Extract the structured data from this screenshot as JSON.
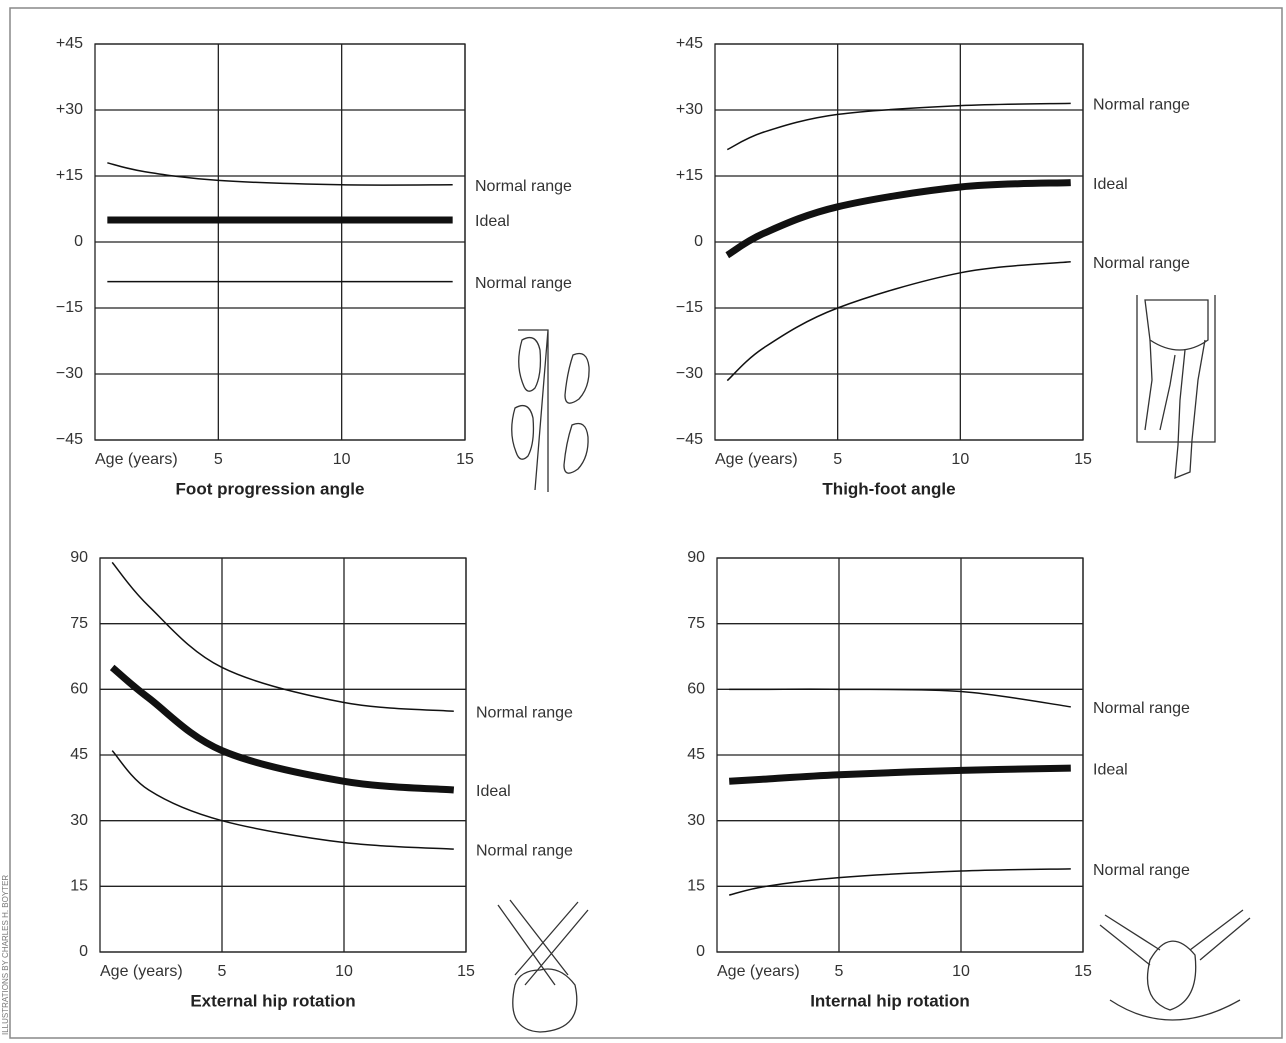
{
  "credit": "ILLUSTRATIONS BY CHARLES H. BOYTER",
  "chart_data": [
    {
      "type": "line",
      "title": "Foot progression angle",
      "xlabel": "Age (years)",
      "xlim": [
        0,
        15
      ],
      "xticks": [
        5,
        10,
        15
      ],
      "ylim": [
        -45,
        45
      ],
      "yticks": [
        {
          "value": 45,
          "label": "+45"
        },
        {
          "value": 30,
          "label": "+30"
        },
        {
          "value": 15,
          "label": "+15"
        },
        0,
        {
          "value": -15,
          "label": "−15"
        },
        {
          "value": -30,
          "label": "−30"
        },
        {
          "value": -45,
          "label": "−45"
        }
      ],
      "grid": true,
      "x": [
        0.5,
        2,
        5,
        10,
        14.5
      ],
      "series": [
        {
          "name": "Normal range",
          "color": "#111",
          "line_width": 1.5,
          "values": [
            18,
            16,
            14,
            13,
            13
          ]
        },
        {
          "name": "Ideal",
          "color": "#111",
          "line_width": 7,
          "values": [
            5,
            5,
            5,
            5,
            5
          ]
        },
        {
          "name": "Normal range",
          "color": "#111",
          "line_width": 1.5,
          "values": [
            -9,
            -9,
            -9,
            -9,
            -9
          ]
        }
      ]
    },
    {
      "type": "line",
      "title": "Thigh-foot angle",
      "xlabel": "Age (years)",
      "xlim": [
        0,
        15
      ],
      "xticks": [
        5,
        10,
        15
      ],
      "ylim": [
        -45,
        45
      ],
      "yticks": [
        {
          "value": 45,
          "label": "+45"
        },
        {
          "value": 30,
          "label": "+30"
        },
        {
          "value": 15,
          "label": "+15"
        },
        0,
        {
          "value": -15,
          "label": "−15"
        },
        {
          "value": -30,
          "label": "−30"
        },
        {
          "value": -45,
          "label": "−45"
        }
      ],
      "grid": true,
      "x": [
        0.5,
        2,
        5,
        10,
        14.5
      ],
      "series": [
        {
          "name": "Normal range",
          "color": "#111",
          "line_width": 1.5,
          "values": [
            21,
            25,
            29,
            31,
            31.5
          ]
        },
        {
          "name": "Ideal",
          "color": "#111",
          "line_width": 7,
          "values": [
            -3,
            2,
            8,
            12.5,
            13.5
          ]
        },
        {
          "name": "Normal range",
          "color": "#111",
          "line_width": 1.5,
          "values": [
            -31.5,
            -24,
            -15,
            -7,
            -4.5
          ]
        }
      ]
    },
    {
      "type": "line",
      "title": "External hip rotation",
      "xlabel": "Age (years)",
      "xlim": [
        0,
        15
      ],
      "xticks": [
        5,
        10,
        15
      ],
      "ylim": [
        0,
        90
      ],
      "yticks": [
        0,
        15,
        30,
        45,
        60,
        75,
        90
      ],
      "grid": true,
      "x": [
        0.5,
        2,
        5,
        10,
        14.5
      ],
      "series": [
        {
          "name": "Normal range",
          "color": "#111",
          "line_width": 1.5,
          "values": [
            89,
            79,
            65,
            57,
            55
          ]
        },
        {
          "name": "Ideal",
          "color": "#111",
          "line_width": 7,
          "values": [
            65,
            58,
            46,
            39,
            37
          ]
        },
        {
          "name": "Normal range",
          "color": "#111",
          "line_width": 1.5,
          "values": [
            46,
            37,
            30,
            25,
            23.5
          ]
        }
      ]
    },
    {
      "type": "line",
      "title": "Internal hip rotation",
      "xlabel": "Age (years)",
      "xlim": [
        0,
        15
      ],
      "xticks": [
        5,
        10,
        15
      ],
      "ylim": [
        0,
        90
      ],
      "yticks": [
        0,
        15,
        30,
        45,
        60,
        75,
        90
      ],
      "grid": true,
      "x": [
        0.5,
        2,
        5,
        10,
        14.5
      ],
      "series": [
        {
          "name": "Normal range",
          "color": "#111",
          "line_width": 1.5,
          "values": [
            60,
            60,
            60,
            59.5,
            56
          ]
        },
        {
          "name": "Ideal",
          "color": "#111",
          "line_width": 7,
          "values": [
            39,
            39.5,
            40.5,
            41.5,
            42
          ]
        },
        {
          "name": "Normal range",
          "color": "#111",
          "line_width": 1.5,
          "values": [
            13,
            15,
            17,
            18.5,
            19
          ]
        }
      ]
    }
  ]
}
